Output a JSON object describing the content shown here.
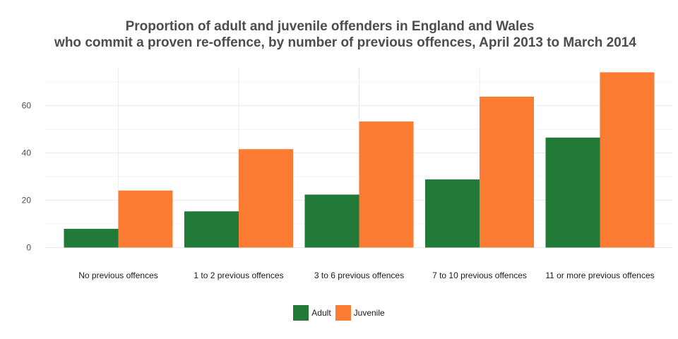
{
  "chart_data": {
    "type": "bar",
    "title_line1": "Proportion of adult and juvenile offenders in England and Wales",
    "title_line2": "who commit a proven re-offence, by number of previous offences, April 2013 to March 2014",
    "xlabel": "",
    "ylabel": "",
    "categories": [
      "No previous offences",
      "1 to 2 previous offences",
      "3 to 6 previous offences",
      "7 to 10 previous offences",
      "11 or more previous offences"
    ],
    "series": [
      {
        "name": "Adult",
        "color": "#217a37",
        "values": [
          7.9,
          15.3,
          22.4,
          28.8,
          46.5
        ]
      },
      {
        "name": "Juvenile",
        "color": "#fb7b33",
        "values": [
          24.1,
          41.6,
          53.3,
          63.8,
          74.1
        ]
      }
    ],
    "ylim": [
      0,
      76
    ],
    "yticks": [
      0,
      20,
      40,
      60
    ],
    "grid": true,
    "legend_position": "bottom"
  }
}
